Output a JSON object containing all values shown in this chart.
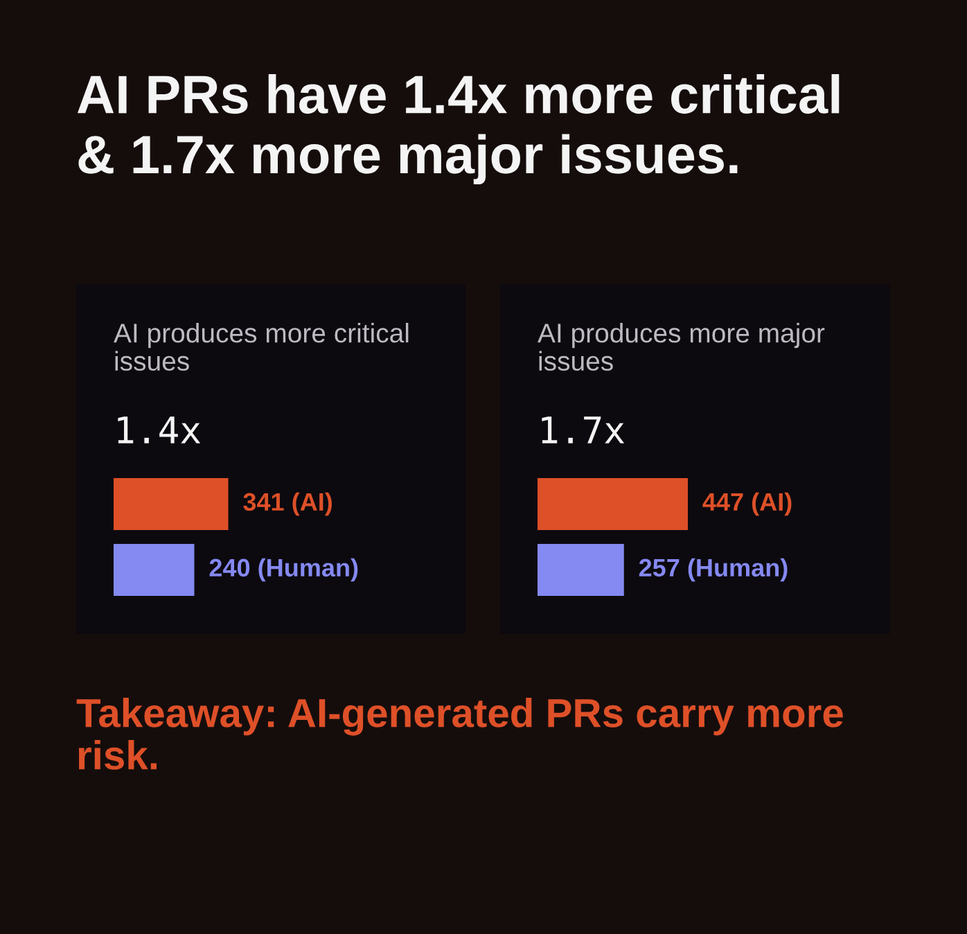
{
  "chart_data": [
    {
      "type": "other",
      "title": "AI PRs have 1.4x more critical & 1.7x more major issues."
    },
    {
      "type": "bar",
      "orientation": "horizontal",
      "title": "AI produces more critical issues",
      "subtitle": "1.4x",
      "categories": [
        null,
        null
      ],
      "values": [
        341,
        240
      ],
      "colors": [
        "#de5028",
        "#8589f2"
      ],
      "value_labels": [
        "341 (AI)",
        "240 (Human)"
      ],
      "tick_labels": false
    },
    {
      "type": "bar",
      "orientation": "horizontal",
      "title": "AI produces more major issues",
      "subtitle": "1.7x",
      "categories": [
        null,
        null
      ],
      "values": [
        447,
        257
      ],
      "colors": [
        "#de5028",
        "#8589f2"
      ],
      "value_labels": [
        "447 (AI)",
        "257 (Human)"
      ],
      "tick_labels": false
    },
    {
      "type": "other",
      "annotations": [
        "Takeaway: AI-generated PRs carry more risk."
      ]
    }
  ]
}
